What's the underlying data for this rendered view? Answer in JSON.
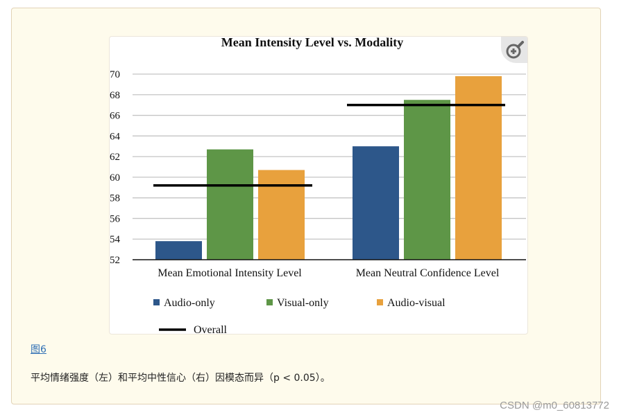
{
  "figure": {
    "link_text": "图6",
    "caption": "平均情绪强度（左）和平均中性信心（右）因模态而异（p < 0.05）。",
    "zoom_icon": "zoom-in-icon"
  },
  "watermark": "CSDN @m0_60813772",
  "colors": {
    "panel_bg": "#fefbec",
    "link": "#2f6fb5",
    "audio_only": "#2d578a",
    "visual_only": "#5e9647",
    "audio_visual": "#e8a13d",
    "overall": "#000000"
  },
  "chart_data": {
    "type": "bar",
    "title": "Mean Intensity Level vs. Modality",
    "categories": [
      "Mean Emotional Intensity Level",
      "Mean Neutral Confidence Level"
    ],
    "series": [
      {
        "name": "Audio-only",
        "values": [
          53.8,
          63.0
        ]
      },
      {
        "name": "Visual-only",
        "values": [
          62.7,
          67.5
        ]
      },
      {
        "name": "Audio-visual",
        "values": [
          60.7,
          69.8
        ]
      }
    ],
    "overall": {
      "name": "Overall",
      "values": [
        59.2,
        67.0
      ]
    },
    "ylim": [
      52,
      70
    ],
    "yticks": [
      52,
      54,
      56,
      58,
      60,
      62,
      64,
      66,
      68,
      70
    ],
    "grid": true,
    "legend_position": "bottom",
    "xlabel": "",
    "ylabel": ""
  }
}
